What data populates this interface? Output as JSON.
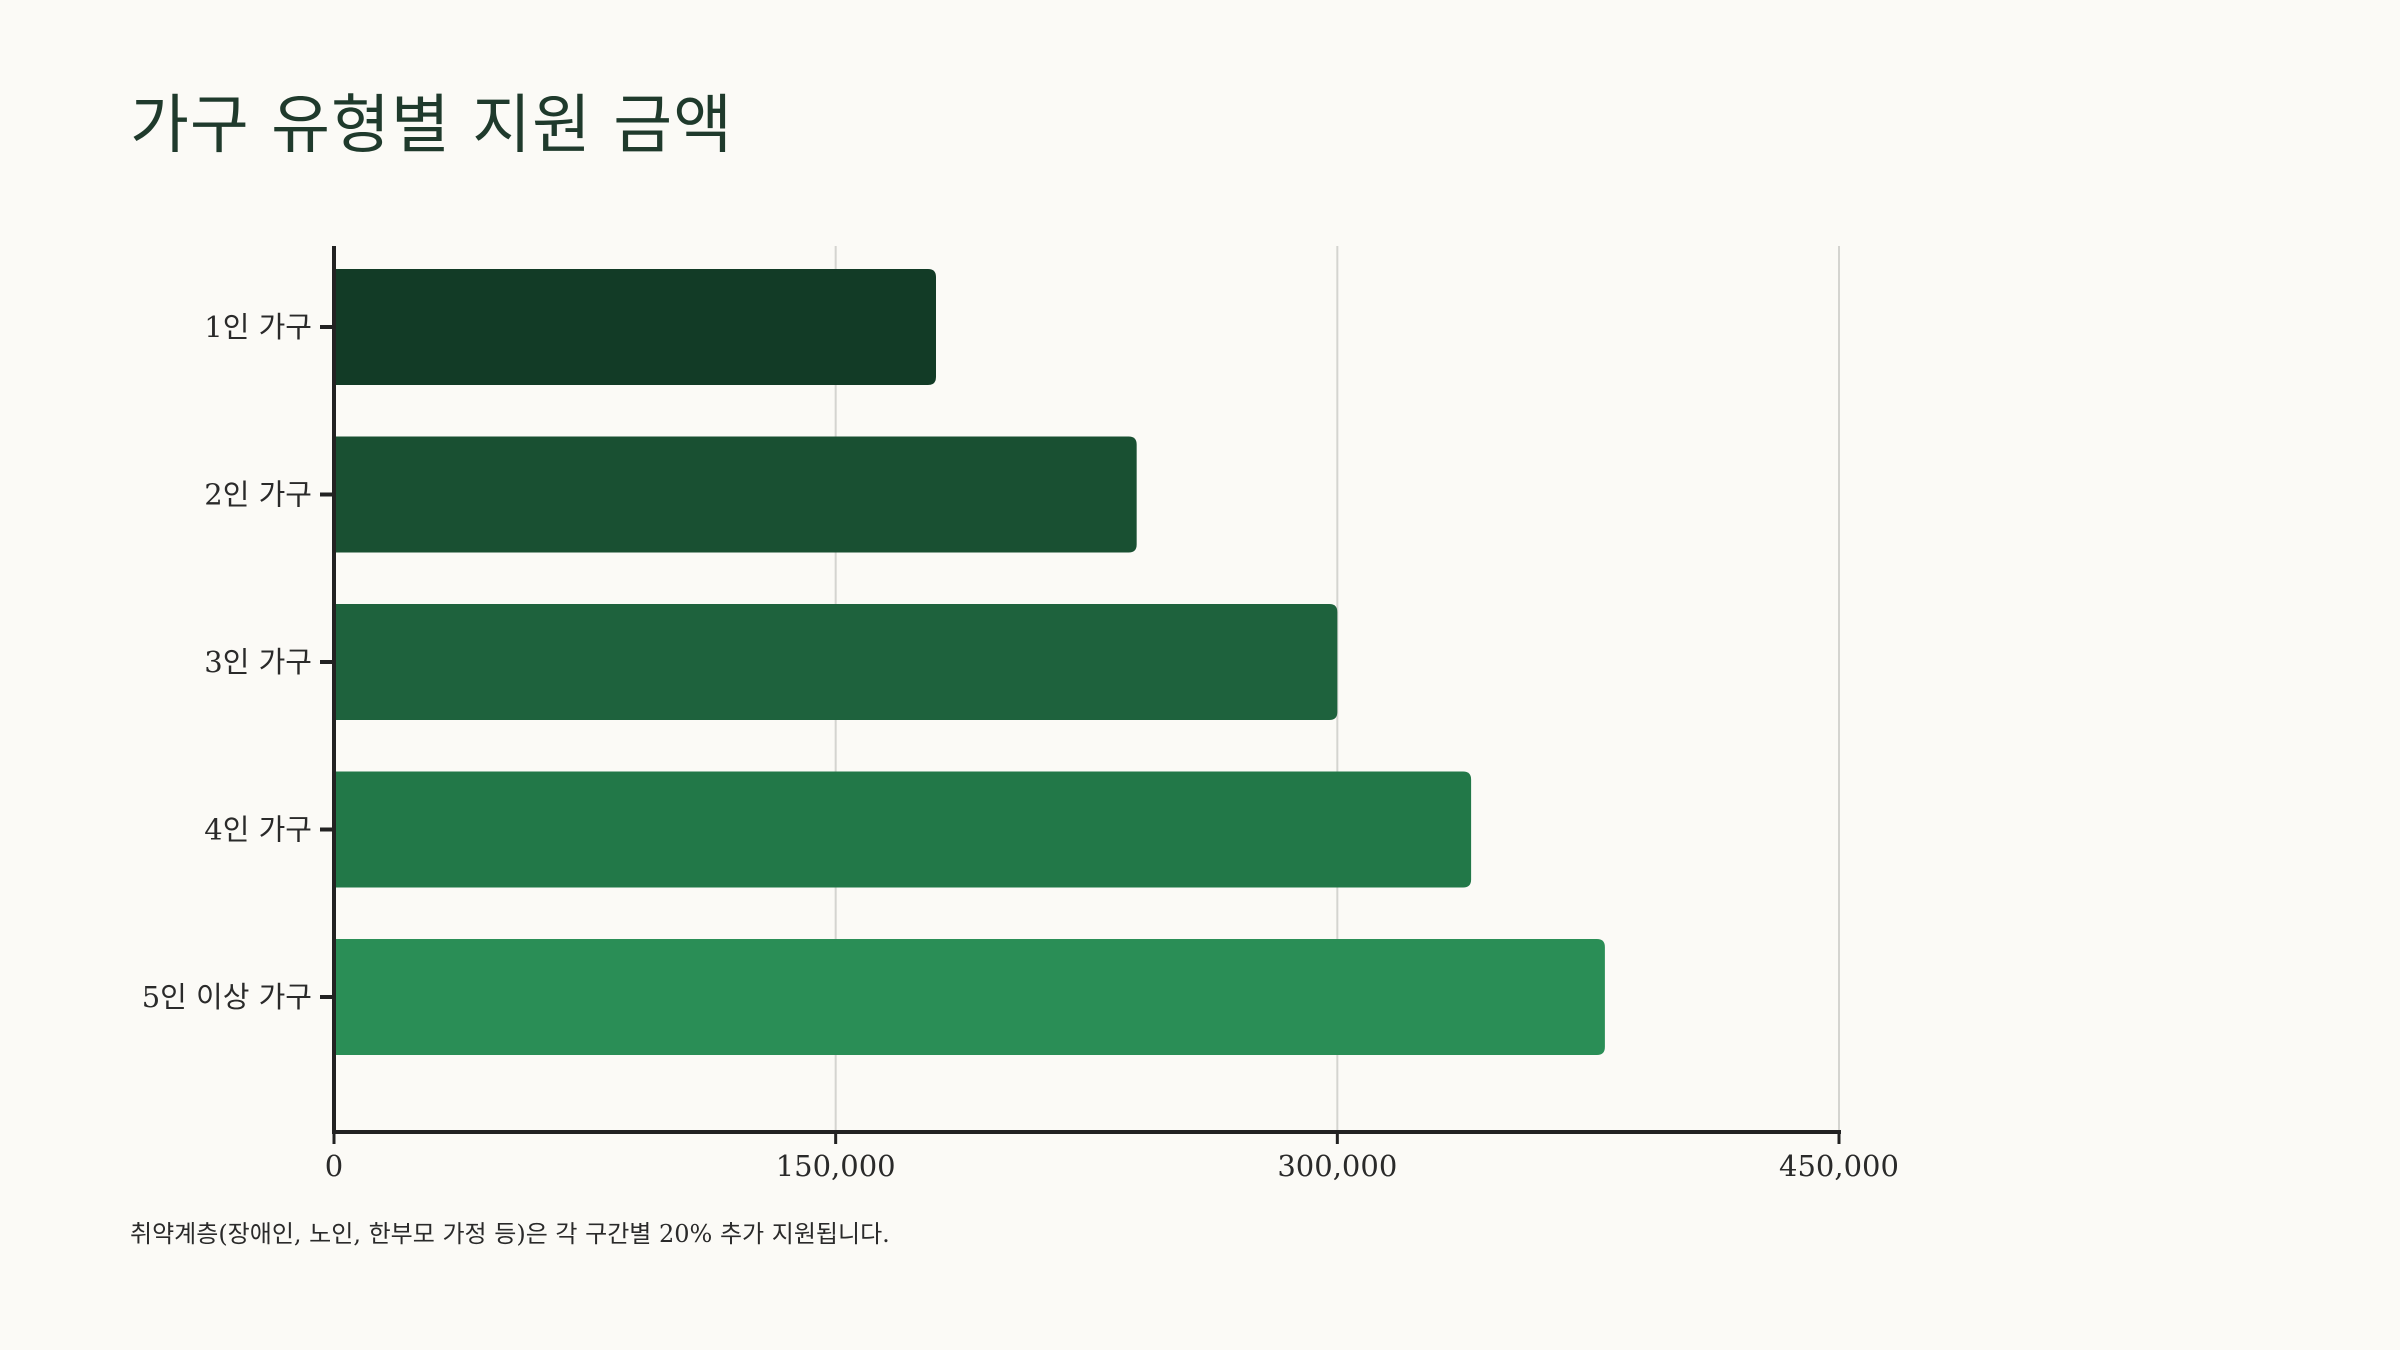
{
  "title": "가구 유형별 지원 금액",
  "footnote": "취약계층(장애인, 노인, 한부모 가정 등)은 각 구간별 20% 추가 지원됩니다.",
  "chart_data": {
    "type": "bar",
    "orientation": "horizontal",
    "title": "가구 유형별 지원 금액",
    "xlabel": "",
    "ylabel": "",
    "categories": [
      "1인 가구",
      "2인 가구",
      "3인 가구",
      "4인 가구",
      "5인 이상 가구"
    ],
    "values": [
      180000,
      240000,
      300000,
      340000,
      380000
    ],
    "xlim": [
      0,
      450000
    ],
    "xticks": [
      0,
      150000,
      300000,
      450000
    ],
    "xtick_labels": [
      "0",
      "150,000",
      "300,000",
      "450,000"
    ],
    "grid": "vertical",
    "legend": "none",
    "colors": [
      "#123b26",
      "#195032",
      "#1e623d",
      "#227848",
      "#2a8e56"
    ]
  },
  "colors": {
    "background": "#fbfaf6",
    "axis": "#222222",
    "grid": "#d4d4d0",
    "title": "#1f3a2c"
  }
}
